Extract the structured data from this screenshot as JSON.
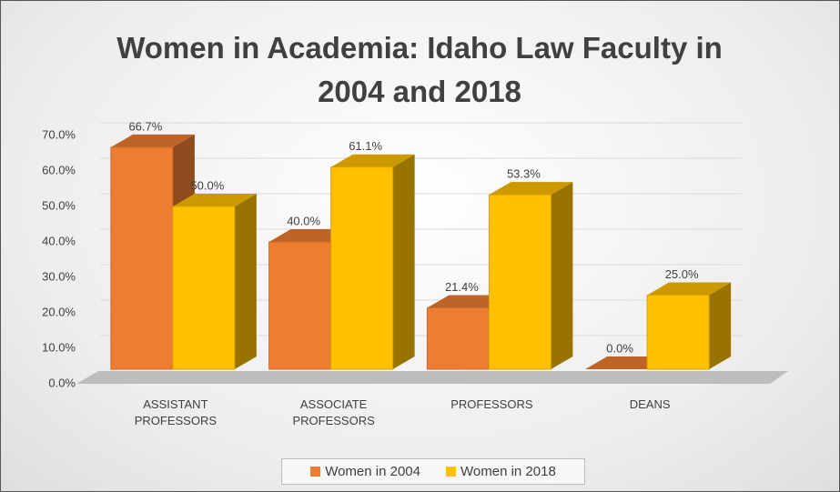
{
  "chart_data": {
    "type": "bar3d",
    "title": "Women in Academia: Idaho Law Faculty in 2004 and 2018",
    "categories": [
      "ASSISTANT PROFESSORS",
      "ASSOCIATE PROFESSORS",
      "PROFESSORS",
      "DEANS"
    ],
    "series": [
      {
        "name": "Women in 2004",
        "color": "#ed7d31",
        "values": [
          66.7,
          40.0,
          21.4,
          0.0
        ],
        "value_labels": [
          "66.7%",
          "40.0%",
          "21.4%",
          "0.0%"
        ]
      },
      {
        "name": "Women in 2018",
        "color": "#ffc000",
        "values": [
          50.0,
          61.1,
          53.3,
          25.0
        ],
        "value_labels": [
          "50.0%",
          "61.1%",
          "53.3%",
          "25.0%"
        ]
      }
    ],
    "ylim": [
      0,
      70
    ],
    "yticks": [
      {
        "value": 0,
        "label": "0.0%"
      },
      {
        "value": 10,
        "label": "10.0%"
      },
      {
        "value": 20,
        "label": "20.0%"
      },
      {
        "value": 30,
        "label": "30.0%"
      },
      {
        "value": 40,
        "label": "40.0%"
      },
      {
        "value": 50,
        "label": "50.0%"
      },
      {
        "value": 60,
        "label": "60.0%"
      },
      {
        "value": 70,
        "label": "70.0%"
      }
    ],
    "grid": true,
    "legend": "bottom"
  }
}
